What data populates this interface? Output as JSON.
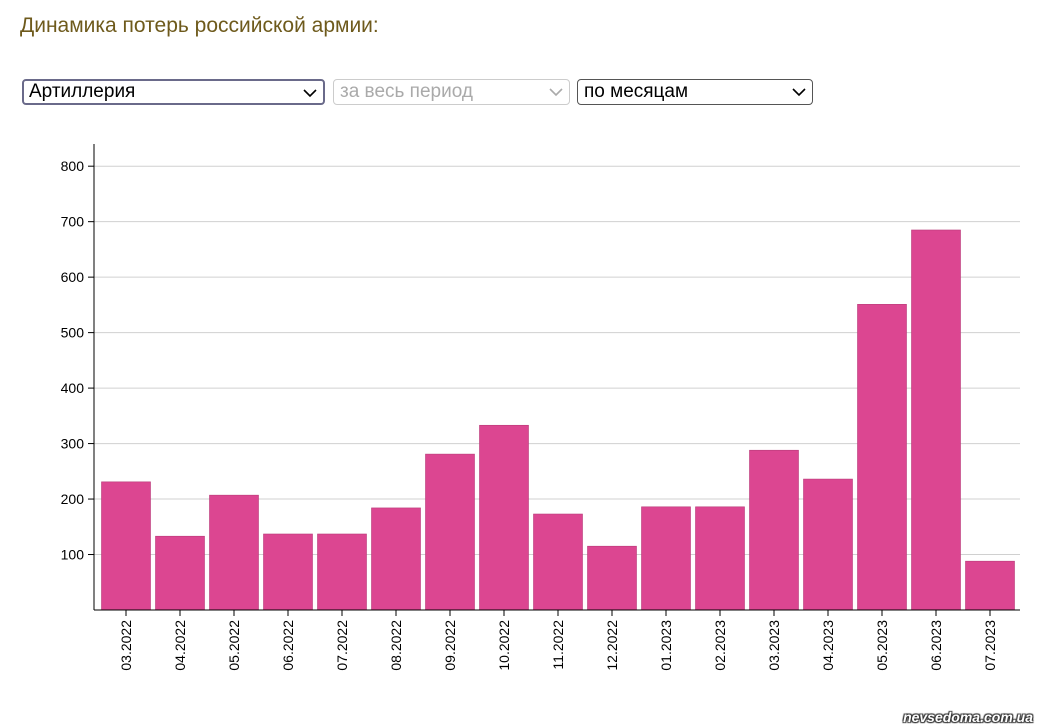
{
  "header": {
    "title": "Динамика потерь российской армии:"
  },
  "controls": [
    "Артиллерия",
    "за весь период",
    "по месяцам"
  ],
  "chart_data": {
    "type": "bar",
    "categories": [
      "03.2022",
      "04.2022",
      "05.2022",
      "06.2022",
      "07.2022",
      "08.2022",
      "09.2022",
      "10.2022",
      "11.2022",
      "12.2022",
      "01.2023",
      "02.2023",
      "03.2023",
      "04.2023",
      "05.2023",
      "06.2023",
      "07.2023"
    ],
    "values": [
      231,
      133,
      207,
      137,
      137,
      184,
      281,
      333,
      173,
      115,
      186,
      186,
      288,
      236,
      551,
      685,
      88
    ],
    "color": "#dc4691",
    "ylim": [
      0,
      840
    ],
    "yticks": [
      100,
      200,
      300,
      400,
      500,
      600,
      700,
      800
    ],
    "grid": true
  },
  "watermark": "nevsedoma.com.ua"
}
